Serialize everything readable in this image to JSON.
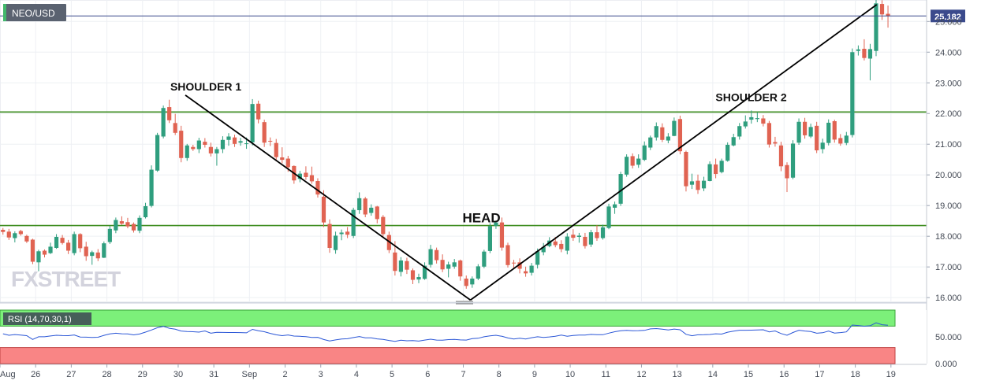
{
  "chart_data": {
    "type": "candlestick",
    "symbol": "NEO/USD",
    "last_price": "25.182",
    "brand": "FXSTREET",
    "price_axis": {
      "range": [
        15.85,
        25.7
      ],
      "ticks": [
        "16.000",
        "17.000",
        "18.000",
        "19.000",
        "20.000",
        "21.000",
        "22.000",
        "23.000",
        "24.000",
        "25.000"
      ]
    },
    "x_axis": {
      "labels": [
        "Aug",
        "26",
        "27",
        "28",
        "29",
        "30",
        "31",
        "Sep",
        "2",
        "3",
        "4",
        "5",
        "6",
        "7",
        "8",
        "9",
        "10",
        "11",
        "12",
        "13",
        "14",
        "15",
        "16",
        "17",
        "18",
        "19"
      ],
      "first_bar_day": "Aug 25",
      "bars_per_day": 6
    },
    "horizontal_levels": [
      22.05,
      18.35
    ],
    "annotations": [
      {
        "text": "SHOULDER 1",
        "day": 30.0,
        "price": 22.75
      },
      {
        "text": "HEAD",
        "day": 38.2,
        "price": 18.45
      },
      {
        "text": "SHOULDER 2",
        "day": 45.3,
        "price": 22.4
      }
    ],
    "trendlines": [
      {
        "from_day": 30.2,
        "from_price": 22.6,
        "to_day": 38.2,
        "to_price": 15.92
      },
      {
        "from_day": 38.2,
        "from_price": 15.92,
        "to_day": 49.6,
        "to_price": 25.55
      }
    ],
    "candles": [
      [
        "Aug 25 00:00",
        18.21,
        18.27,
        18.05,
        18.14
      ],
      [
        "Aug 25 04:00",
        18.15,
        18.24,
        17.88,
        17.96
      ],
      [
        "Aug 25 08:00",
        17.94,
        18.16,
        17.8,
        18.1
      ],
      [
        "Aug 25 12:00",
        18.17,
        18.21,
        18.02,
        18.07
      ],
      [
        "Aug 25 16:00",
        18.01,
        18.05,
        17.78,
        17.83
      ],
      [
        "Aug 25 20:00",
        17.89,
        17.92,
        17.09,
        17.17
      ],
      [
        "Aug 26 00:00",
        17.15,
        17.56,
        16.86,
        17.51
      ],
      [
        "Aug 26 04:00",
        17.53,
        17.57,
        17.31,
        17.4
      ],
      [
        "Aug 26 08:00",
        17.45,
        17.79,
        17.42,
        17.66
      ],
      [
        "Aug 26 12:00",
        17.62,
        18.07,
        17.59,
        17.98
      ],
      [
        "Aug 26 16:00",
        17.95,
        18.04,
        17.73,
        17.78
      ],
      [
        "Aug 26 20:00",
        17.79,
        17.88,
        17.42,
        17.53
      ],
      [
        "Aug 27 00:00",
        17.45,
        18.15,
        17.38,
        18.07
      ],
      [
        "Aug 27 04:00",
        18.07,
        18.1,
        17.48,
        17.61
      ],
      [
        "Aug 27 08:00",
        17.66,
        17.82,
        17.2,
        17.35
      ],
      [
        "Aug 27 12:00",
        17.36,
        17.53,
        17.07,
        17.48
      ],
      [
        "Aug 27 16:00",
        17.47,
        17.58,
        17.19,
        17.28
      ],
      [
        "Aug 27 20:00",
        17.3,
        17.83,
        17.29,
        17.77
      ],
      [
        "Aug 28 00:00",
        17.81,
        18.34,
        17.75,
        18.24
      ],
      [
        "Aug 28 04:00",
        18.19,
        18.61,
        18.1,
        18.53
      ],
      [
        "Aug 28 08:00",
        18.49,
        18.65,
        18.37,
        18.41
      ],
      [
        "Aug 28 12:00",
        18.46,
        18.6,
        18.26,
        18.32
      ],
      [
        "Aug 28 16:00",
        18.4,
        18.45,
        18.12,
        18.19
      ],
      [
        "Aug 28 20:00",
        18.18,
        18.68,
        18.1,
        18.6
      ],
      [
        "Aug 29 00:00",
        18.62,
        19.09,
        18.58,
        18.98
      ],
      [
        "Aug 29 04:00",
        18.99,
        20.31,
        18.94,
        20.17
      ],
      [
        "Aug 29 08:00",
        20.14,
        21.37,
        20.1,
        21.3
      ],
      [
        "Aug 29 12:00",
        21.25,
        22.26,
        21.19,
        22.18
      ],
      [
        "Aug 29 16:00",
        22.21,
        22.45,
        21.69,
        21.78
      ],
      [
        "Aug 29 20:00",
        21.69,
        21.99,
        21.3,
        21.37
      ],
      [
        "Aug 30 00:00",
        21.44,
        21.6,
        20.41,
        20.55
      ],
      [
        "Aug 30 04:00",
        20.55,
        21.01,
        20.46,
        20.96
      ],
      [
        "Aug 30 08:00",
        20.91,
        20.98,
        20.78,
        20.84
      ],
      [
        "Aug 30 12:00",
        20.84,
        21.21,
        20.71,
        21.12
      ],
      [
        "Aug 30 16:00",
        21.08,
        21.2,
        20.89,
        20.98
      ],
      [
        "Aug 30 20:00",
        20.91,
        21.05,
        20.6,
        20.7
      ],
      [
        "Aug 31 00:00",
        20.7,
        20.91,
        20.3,
        20.84
      ],
      [
        "Aug 31 04:00",
        20.84,
        21.26,
        20.71,
        21.14
      ],
      [
        "Aug 31 08:00",
        21.14,
        21.36,
        20.95,
        21.25
      ],
      [
        "Aug 31 12:00",
        21.22,
        21.31,
        20.91,
        21.01
      ],
      [
        "Aug 31 16:00",
        21.05,
        21.21,
        20.95,
        21.1
      ],
      [
        "Aug 31 20:00",
        21.03,
        21.22,
        20.85,
        21.03
      ],
      [
        "Sep 1 00:00",
        21.06,
        22.47,
        20.96,
        22.31
      ],
      [
        "Sep 1 04:00",
        22.32,
        22.42,
        21.68,
        21.81
      ],
      [
        "Sep 1 08:00",
        21.72,
        21.8,
        20.91,
        21.05
      ],
      [
        "Sep 1 12:00",
        21.11,
        21.22,
        20.94,
        21.09
      ],
      [
        "Sep 1 16:00",
        21.04,
        21.17,
        20.45,
        20.58
      ],
      [
        "Sep 1 20:00",
        20.57,
        20.9,
        20.38,
        20.49
      ],
      [
        "Sep 2 00:00",
        20.53,
        20.62,
        20.1,
        20.25
      ],
      [
        "Sep 2 04:00",
        20.29,
        20.31,
        19.71,
        19.82
      ],
      [
        "Sep 2 08:00",
        19.87,
        20.13,
        19.76,
        20.04
      ],
      [
        "Sep 2 12:00",
        20.07,
        20.28,
        19.84,
        19.93
      ],
      [
        "Sep 2 16:00",
        19.99,
        20.27,
        19.71,
        19.79
      ],
      [
        "Sep 2 20:00",
        19.8,
        19.89,
        19.26,
        19.36
      ],
      [
        "Sep 3 00:00",
        19.29,
        19.5,
        18.3,
        18.45
      ],
      [
        "Sep 3 04:00",
        18.4,
        18.55,
        17.46,
        17.62
      ],
      [
        "Sep 3 08:00",
        17.55,
        18.15,
        17.43,
        18.02
      ],
      [
        "Sep 3 12:00",
        18.07,
        18.22,
        17.87,
        18.12
      ],
      [
        "Sep 3 16:00",
        18.15,
        18.3,
        17.94,
        18.05
      ],
      [
        "Sep 3 20:00",
        18.01,
        18.93,
        17.94,
        18.86
      ],
      [
        "Sep 4 00:00",
        18.85,
        19.43,
        18.73,
        19.24
      ],
      [
        "Sep 4 04:00",
        19.23,
        19.28,
        18.62,
        18.71
      ],
      [
        "Sep 4 08:00",
        18.76,
        19.04,
        18.67,
        18.93
      ],
      [
        "Sep 4 12:00",
        18.97,
        18.99,
        18.42,
        18.56
      ],
      [
        "Sep 4 16:00",
        18.63,
        18.69,
        17.95,
        18.07
      ],
      [
        "Sep 4 20:00",
        18.04,
        18.15,
        17.45,
        17.55
      ],
      [
        "Sep 5 00:00",
        17.47,
        17.84,
        16.72,
        16.87
      ],
      [
        "Sep 5 04:00",
        16.84,
        17.32,
        16.69,
        17.21
      ],
      [
        "Sep 5 08:00",
        17.19,
        17.3,
        16.77,
        16.91
      ],
      [
        "Sep 5 12:00",
        16.89,
        16.95,
        16.44,
        16.58
      ],
      [
        "Sep 5 16:00",
        16.59,
        16.78,
        16.47,
        16.67
      ],
      [
        "Sep 5 20:00",
        16.61,
        17.15,
        16.58,
        17.04
      ],
      [
        "Sep 6 00:00",
        17.07,
        17.72,
        16.98,
        17.58
      ],
      [
        "Sep 6 04:00",
        17.55,
        17.63,
        17.11,
        17.22
      ],
      [
        "Sep 6 08:00",
        17.23,
        17.41,
        16.83,
        16.92
      ],
      [
        "Sep 6 12:00",
        16.94,
        17.17,
        16.66,
        17.08
      ],
      [
        "Sep 6 16:00",
        17.01,
        17.26,
        16.94,
        17.15
      ],
      [
        "Sep 6 20:00",
        17.21,
        17.24,
        16.55,
        16.69
      ],
      [
        "Sep 7 00:00",
        16.62,
        16.72,
        16.29,
        16.38
      ],
      [
        "Sep 7 04:00",
        16.43,
        16.69,
        16.32,
        16.62
      ],
      [
        "Sep 7 08:00",
        16.62,
        17.09,
        16.57,
        17.02
      ],
      [
        "Sep 7 12:00",
        17.01,
        17.56,
        16.96,
        17.5
      ],
      [
        "Sep 7 16:00",
        17.52,
        18.43,
        17.45,
        18.33
      ],
      [
        "Sep 7 20:00",
        18.34,
        18.51,
        18.24,
        18.45
      ],
      [
        "Sep 8 00:00",
        18.45,
        18.61,
        17.53,
        17.63
      ],
      [
        "Sep 8 04:00",
        17.71,
        17.79,
        16.98,
        17.06
      ],
      [
        "Sep 8 08:00",
        17.14,
        17.23,
        16.93,
        17.12
      ],
      [
        "Sep 8 12:00",
        17.15,
        17.28,
        16.79,
        16.94
      ],
      [
        "Sep 8 16:00",
        16.86,
        17.01,
        16.68,
        16.79
      ],
      [
        "Sep 8 20:00",
        16.81,
        17.13,
        16.72,
        17.04
      ],
      [
        "Sep 9 00:00",
        17.07,
        17.6,
        16.95,
        17.51
      ],
      [
        "Sep 9 04:00",
        17.48,
        17.78,
        17.38,
        17.65
      ],
      [
        "Sep 9 08:00",
        17.68,
        17.97,
        17.64,
        17.86
      ],
      [
        "Sep 9 12:00",
        17.83,
        17.98,
        17.64,
        17.71
      ],
      [
        "Sep 9 16:00",
        17.75,
        17.87,
        17.48,
        17.58
      ],
      [
        "Sep 9 20:00",
        17.53,
        18.1,
        17.41,
        17.99
      ],
      [
        "Sep 10 00:00",
        18.05,
        18.23,
        17.85,
        17.95
      ],
      [
        "Sep 10 04:00",
        17.98,
        18.11,
        17.79,
        18.02
      ],
      [
        "Sep 10 08:00",
        17.98,
        18.11,
        17.6,
        17.68
      ],
      [
        "Sep 10 12:00",
        17.73,
        18.21,
        17.65,
        18.13
      ],
      [
        "Sep 10 16:00",
        18.13,
        18.36,
        17.85,
        17.94
      ],
      [
        "Sep 10 20:00",
        17.94,
        18.38,
        17.89,
        18.29
      ],
      [
        "Sep 11 00:00",
        18.27,
        19.06,
        18.23,
        18.97
      ],
      [
        "Sep 11 04:00",
        18.93,
        19.13,
        18.73,
        19.04
      ],
      [
        "Sep 11 08:00",
        19.06,
        20.1,
        18.99,
        20.03
      ],
      [
        "Sep 11 12:00",
        20.01,
        20.67,
        19.94,
        20.59
      ],
      [
        "Sep 11 16:00",
        20.61,
        20.7,
        20.21,
        20.3
      ],
      [
        "Sep 11 20:00",
        20.33,
        20.67,
        20.23,
        20.53
      ],
      [
        "Sep 12 00:00",
        20.49,
        21.09,
        20.45,
        20.96
      ],
      [
        "Sep 12 04:00",
        20.89,
        21.28,
        20.81,
        21.22
      ],
      [
        "Sep 12 08:00",
        21.22,
        21.71,
        21.12,
        21.59
      ],
      [
        "Sep 12 12:00",
        21.55,
        21.68,
        21.07,
        21.14
      ],
      [
        "Sep 12 16:00",
        21.12,
        21.36,
        21.03,
        21.25
      ],
      [
        "Sep 12 20:00",
        21.27,
        21.87,
        21.26,
        21.76
      ],
      [
        "Sep 13 00:00",
        21.82,
        21.93,
        20.67,
        20.77
      ],
      [
        "Sep 13 04:00",
        20.75,
        20.79,
        19.46,
        19.63
      ],
      [
        "Sep 13 08:00",
        19.68,
        20.04,
        19.54,
        19.79
      ],
      [
        "Sep 13 12:00",
        19.81,
        20.01,
        19.38,
        19.51
      ],
      [
        "Sep 13 16:00",
        19.56,
        19.94,
        19.47,
        19.81
      ],
      [
        "Sep 13 20:00",
        19.8,
        20.44,
        19.79,
        20.35
      ],
      [
        "Sep 14 00:00",
        20.34,
        20.53,
        19.89,
        20.03
      ],
      [
        "Sep 14 04:00",
        20.09,
        20.53,
        20.05,
        20.46
      ],
      [
        "Sep 14 08:00",
        20.46,
        21.06,
        20.43,
        20.98
      ],
      [
        "Sep 14 12:00",
        20.96,
        21.34,
        20.93,
        21.23
      ],
      [
        "Sep 14 16:00",
        21.25,
        21.69,
        21.15,
        21.59
      ],
      [
        "Sep 14 20:00",
        21.58,
        21.94,
        21.51,
        21.74
      ],
      [
        "Sep 15 00:00",
        21.8,
        22.1,
        21.67,
        21.88
      ],
      [
        "Sep 15 04:00",
        21.82,
        22.04,
        21.72,
        21.85
      ],
      [
        "Sep 15 08:00",
        21.84,
        21.95,
        21.58,
        21.67
      ],
      [
        "Sep 15 12:00",
        21.69,
        21.76,
        20.89,
        20.99
      ],
      [
        "Sep 15 16:00",
        21.07,
        21.24,
        20.92,
        21.02
      ],
      [
        "Sep 15 20:00",
        20.96,
        21.08,
        20.12,
        20.28
      ],
      [
        "Sep 16 00:00",
        20.32,
        20.41,
        19.44,
        19.89
      ],
      [
        "Sep 16 04:00",
        19.91,
        21.13,
        19.86,
        21.02
      ],
      [
        "Sep 16 08:00",
        21.05,
        21.84,
        20.98,
        21.73
      ],
      [
        "Sep 16 12:00",
        21.73,
        21.86,
        21.18,
        21.29
      ],
      [
        "Sep 16 16:00",
        21.25,
        21.67,
        21.2,
        21.56
      ],
      [
        "Sep 16 20:00",
        21.6,
        21.73,
        20.71,
        20.8
      ],
      [
        "Sep 17 00:00",
        20.84,
        21.18,
        20.7,
        21.05
      ],
      [
        "Sep 17 04:00",
        21.04,
        21.81,
        20.96,
        21.7
      ],
      [
        "Sep 17 08:00",
        21.75,
        21.8,
        21.05,
        21.15
      ],
      [
        "Sep 17 12:00",
        21.2,
        21.33,
        20.95,
        21.02
      ],
      [
        "Sep 17 16:00",
        21.04,
        21.4,
        20.97,
        21.28
      ],
      [
        "Sep 17 20:00",
        21.3,
        24.12,
        21.22,
        24.0
      ],
      [
        "Sep 18 00:00",
        24.04,
        24.22,
        23.89,
        24.09
      ],
      [
        "Sep 18 04:00",
        24.11,
        24.42,
        23.73,
        23.81
      ],
      [
        "Sep 18 08:00",
        23.79,
        24.27,
        23.08,
        24.1
      ],
      [
        "Sep 18 12:00",
        24.04,
        25.71,
        23.87,
        25.59
      ],
      [
        "Sep 18 16:00",
        25.57,
        25.69,
        25.05,
        25.23
      ],
      [
        "Sep 18 20:00",
        25.25,
        25.52,
        24.8,
        25.18
      ]
    ],
    "rsi": {
      "label": "RSI (14,70,30,1)",
      "ticks": [
        "0.000",
        "50.000"
      ],
      "overbought_zone": [
        70,
        100
      ],
      "oversold_zone": [
        0,
        30
      ],
      "values": [
        55.8,
        52.9,
        54.3,
        53.4,
        52.2,
        45.1,
        50.2,
        50.2,
        51.6,
        53.0,
        52.3,
        52.2,
        53.6,
        49.7,
        49.4,
        49.0,
        49.3,
        52.8,
        55.4,
        56.8,
        55.8,
        55.4,
        53.7,
        55.3,
        58.8,
        62.8,
        67.0,
        69.5,
        66.0,
        64.2,
        60.9,
        60.0,
        59.5,
        58.8,
        61.0,
        56.8,
        58.6,
        58.2,
        58.1,
        58.1,
        57.9,
        57.5,
        63.9,
        61.5,
        59.6,
        56.4,
        53.8,
        52.2,
        53.6,
        51.4,
        51.1,
        50.5,
        48.9,
        49.1,
        45.0,
        42.4,
        44.2,
        46.1,
        46.4,
        48.7,
        50.6,
        48.2,
        48.1,
        46.2,
        45.3,
        43.2,
        41.5,
        43.7,
        42.6,
        43.1,
        42.1,
        43.9,
        45.6,
        43.9,
        43.7,
        44.9,
        45.1,
        44.2,
        44.0,
        46.6,
        47.4,
        50.2,
        51.8,
        52.9,
        51.0,
        48.0,
        46.1,
        47.3,
        46.1,
        48.4,
        50.1,
        48.9,
        49.9,
        51.1,
        53.3,
        51.2,
        52.7,
        53.2,
        53.3,
        54.5,
        53.9,
        54.0,
        56.9,
        59.5,
        61.4,
        62.0,
        61.4,
        61.6,
        62.0,
        64.8,
        65.5,
        64.4,
        62.8,
        64.6,
        63.3,
        54.7,
        52.0,
        53.8,
        53.9,
        54.4,
        55.7,
        55.1,
        58.7,
        60.8,
        62.3,
        62.3,
        62.5,
        62.8,
        63.3,
        59.2,
        61.0,
        56.2,
        53.0,
        58.1,
        62.4,
        60.9,
        59.9,
        56.8,
        57.6,
        60.8,
        57.0,
        58.0,
        59.3,
        72.0,
        71.2,
        69.8,
        70.7,
        76.2,
        72.6,
        71.7
      ]
    }
  }
}
